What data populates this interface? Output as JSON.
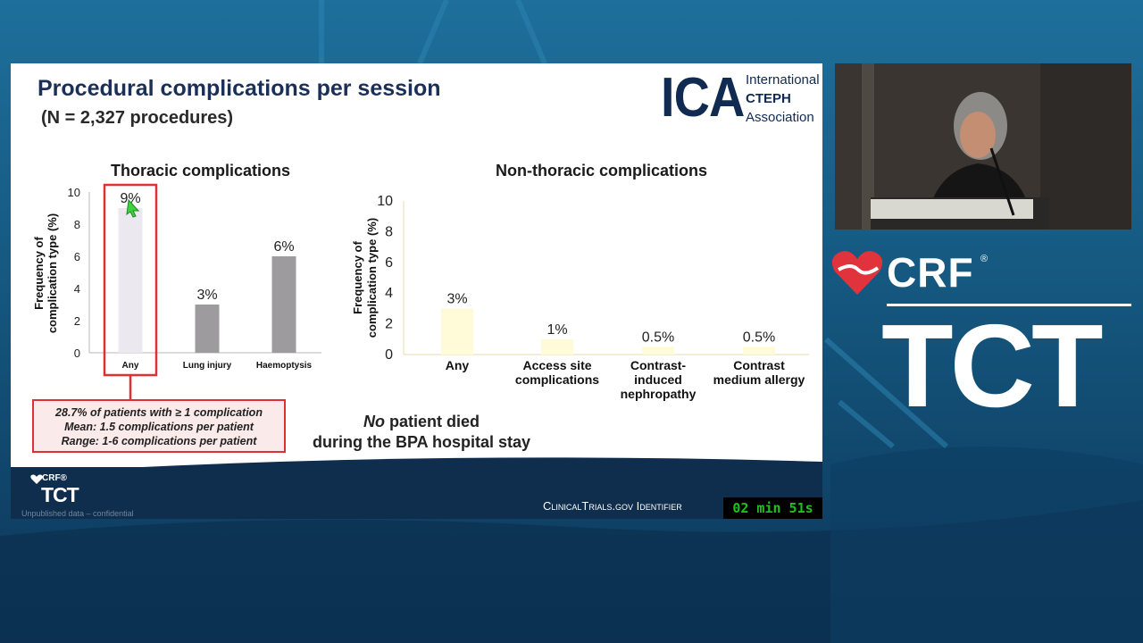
{
  "slide": {
    "title": "Procedural complications per session",
    "subtitle": "(N = 2,327 procedures)",
    "logo": {
      "abbr": "ICA",
      "line1": "International",
      "line2": "CTEPH",
      "line3": "Association"
    },
    "note_lines": [
      "28.7% of patients with ≥ 1 complication",
      "Mean: 1.5 complications per patient",
      "Range: 1-6 complications per patient"
    ],
    "died_word": "No",
    "died_rest": " patient died",
    "died_line2": "during the BPA hospital stay",
    "unpublished": "Unpublished data – confidential",
    "ct_identifier": "ClinicalTrials.gov Identifier",
    "timer": "02 min 51s",
    "footer_logo": {
      "crf": "CRF®",
      "tct": "TCT"
    }
  },
  "brand": {
    "crf": "CRF",
    "reg": "®",
    "tct": "TCT"
  },
  "colors": {
    "accent_red": "#e03030",
    "thoracic_bar": "#9e9b9f",
    "thoracic_any": "#ebe9ef",
    "nonthoracic_bar": "#fffbd8",
    "axis": "#e8dcb0"
  },
  "chart_data": [
    {
      "type": "bar",
      "title": "Thoracic complications",
      "ylabel": "Frequency of complication type (%)",
      "categories": [
        "Any",
        "Lung injury",
        "Haemoptysis"
      ],
      "values": [
        9,
        3,
        6
      ],
      "data_labels": [
        "9%",
        "3%",
        "6%"
      ],
      "yticks": [
        "0",
        "2",
        "4",
        "6",
        "8",
        "10"
      ],
      "ylim": [
        0,
        10
      ],
      "highlight": "Any"
    },
    {
      "type": "bar",
      "title": "Non-thoracic complications",
      "ylabel": "Frequency of complication type (%)",
      "categories": [
        "Any",
        "Access site complications",
        "Contrast-induced nephropathy",
        "Contrast medium allergy"
      ],
      "category_lines": [
        [
          "Any"
        ],
        [
          "Access site",
          "complications"
        ],
        [
          "Contrast-",
          "induced",
          "nephropathy"
        ],
        [
          "Contrast",
          "medium allergy"
        ]
      ],
      "values": [
        3,
        1,
        0.5,
        0.5
      ],
      "data_labels": [
        "3%",
        "1%",
        "0.5%",
        "0.5%"
      ],
      "yticks": [
        "0",
        "2",
        "4",
        "6",
        "8",
        "10"
      ],
      "ylim": [
        0,
        10
      ]
    }
  ]
}
